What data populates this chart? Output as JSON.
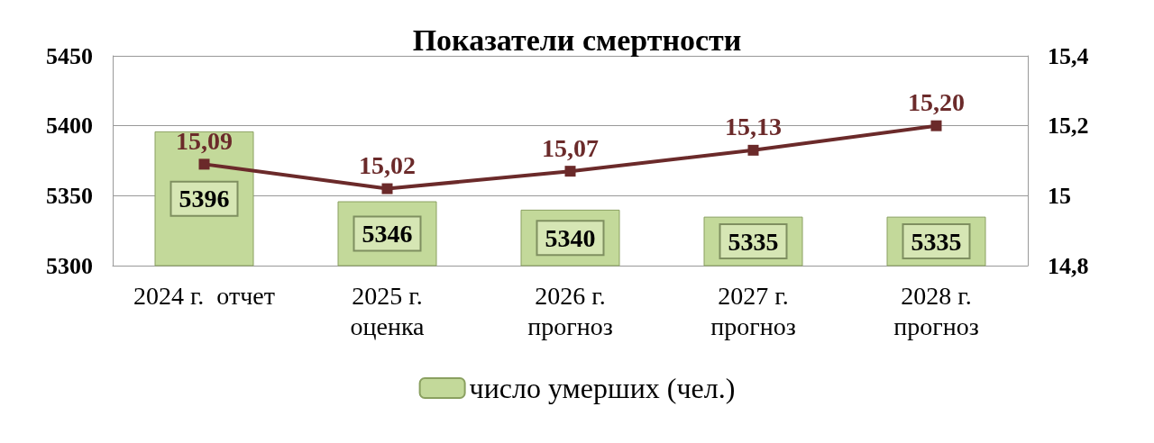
{
  "chart_data": {
    "type": "bar",
    "title": "Показатели смертности",
    "categories": [
      "2024 г.  отчет",
      "2025 г.\nоценка",
      "2026 г.\nпрогноз",
      "2027 г.\nпрогноз",
      "2028 г.\nпрогноз"
    ],
    "series": [
      {
        "name": "число умерших (чел.)",
        "color": "#c3d99a",
        "values": [
          5396,
          5346,
          5340,
          5335,
          5335
        ],
        "value_labels": [
          "5396",
          "5346",
          "5340",
          "5335",
          "5335"
        ]
      },
      {
        "type": "line",
        "axis": "y2",
        "color": "#6b2a2a",
        "values": [
          15.09,
          15.02,
          15.07,
          15.13,
          15.2
        ],
        "value_labels": [
          "15,09",
          "15,02",
          "15,07",
          "15,13",
          "15,20"
        ]
      }
    ],
    "ylim": [
      5300,
      5450
    ],
    "yticks": [
      5300,
      5350,
      5400,
      5450
    ],
    "y2lim": [
      14.8,
      15.4
    ],
    "y2ticks": [
      {
        "value": 14.8,
        "label": "14,8"
      },
      15,
      {
        "value": 15.2,
        "label": "15,2"
      },
      {
        "value": 15.4,
        "label": "15,4"
      }
    ],
    "grid": "y",
    "legend": "bottom",
    "marker": "square",
    "line_style": "solid"
  }
}
